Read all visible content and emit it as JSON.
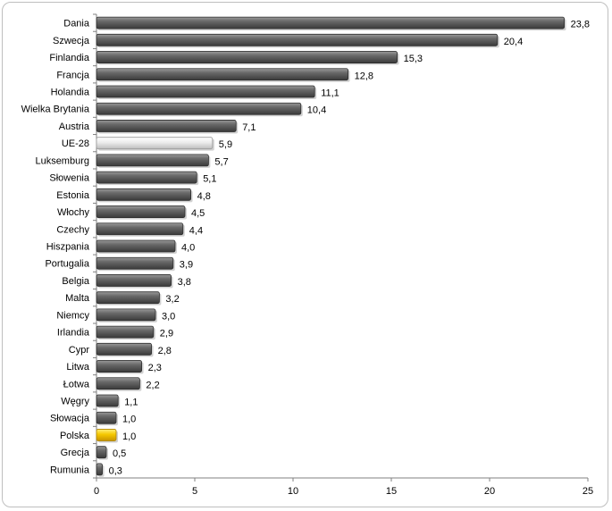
{
  "chart_data": {
    "type": "bar",
    "orientation": "horizontal",
    "categories": [
      "Dania",
      "Szwecja",
      "Finlandia",
      "Francja",
      "Holandia",
      "Wielka Brytania",
      "Austria",
      "UE-28",
      "Luksemburg",
      "Słowenia",
      "Estonia",
      "Włochy",
      "Czechy",
      "Hiszpania",
      "Portugalia",
      "Belgia",
      "Malta",
      "Niemcy",
      "Irlandia",
      "Cypr",
      "Litwa",
      "Łotwa",
      "Węgry",
      "Słowacja",
      "Polska",
      "Grecja",
      "Rumunia"
    ],
    "values": [
      23.8,
      20.4,
      15.3,
      12.8,
      11.1,
      10.4,
      7.1,
      5.9,
      5.7,
      5.1,
      4.8,
      4.5,
      4.4,
      4.0,
      3.9,
      3.8,
      3.2,
      3.0,
      2.9,
      2.8,
      2.3,
      2.2,
      1.1,
      1.0,
      1.0,
      0.5,
      0.3
    ],
    "value_labels": [
      "23,8",
      "20,4",
      "15,3",
      "12,8",
      "11,1",
      "10,4",
      "7,1",
      "5,9",
      "5,7",
      "5,1",
      "4,8",
      "4,5",
      "4,4",
      "4,0",
      "3,9",
      "3,8",
      "3,2",
      "3,0",
      "2,9",
      "2,8",
      "2,3",
      "2,2",
      "1,1",
      "1,0",
      "1,0",
      "0,5",
      "0,3"
    ],
    "xlim": [
      0,
      25
    ],
    "xticks": [
      0,
      5,
      10,
      15,
      20,
      25
    ],
    "title": "",
    "xlabel": "",
    "ylabel": "",
    "grid": false,
    "legend": "none",
    "colors": {
      "default": "#5a5a5a",
      "highlight_ue": "#e6e6e6",
      "highlight_pl": "#f2c200"
    },
    "highlights": {
      "UE-28": "highlight_ue",
      "Polska": "highlight_pl"
    }
  }
}
